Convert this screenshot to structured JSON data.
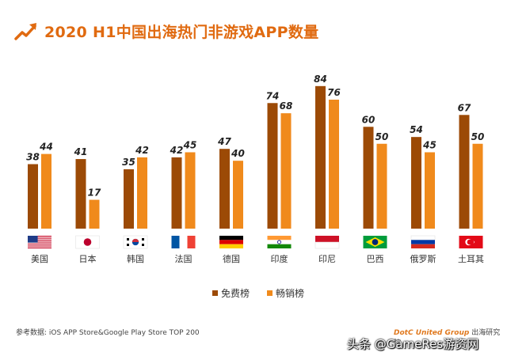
{
  "page": {
    "title": "2020 H1中国出海热门非游戏APP数量",
    "source": "参考数据: iOS APP Store&Google Play Store TOP 200",
    "brand_name": "DotC United Group",
    "brand_suffix": " 出海研究院",
    "watermark": "头条 @GameRes游资网"
  },
  "colors": {
    "free": "#9c4a06",
    "paid": "#f08a1c",
    "title": "#e06a10"
  },
  "chart_data": {
    "type": "bar",
    "title": "2020 H1中国出海热门非游戏APP数量",
    "xlabel": "",
    "ylabel": "",
    "ylim": [
      0,
      90
    ],
    "grid": false,
    "legend_position": "bottom",
    "categories": [
      "美国",
      "日本",
      "韩国",
      "法国",
      "德国",
      "印度",
      "印尼",
      "巴西",
      "俄罗斯",
      "土耳其"
    ],
    "flag_icons": [
      "us-flag-icon",
      "japan-flag-icon",
      "korea-flag-icon",
      "france-flag-icon",
      "germany-flag-icon",
      "india-flag-icon",
      "indonesia-flag-icon",
      "brazil-flag-icon",
      "russia-flag-icon",
      "turkey-flag-icon"
    ],
    "series": [
      {
        "name": "免费榜",
        "values": [
          38,
          41,
          35,
          42,
          47,
          74,
          84,
          60,
          54,
          67
        ]
      },
      {
        "name": "畅销榜",
        "values": [
          44,
          17,
          42,
          45,
          40,
          68,
          76,
          50,
          45,
          50
        ]
      }
    ]
  }
}
